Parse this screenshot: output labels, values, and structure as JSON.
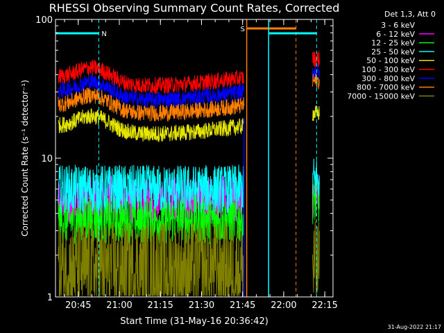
{
  "chart_data": {
    "type": "line",
    "title": "RHESSI Observing Summary Count Rates, Corrected",
    "xlabel": "Start Time (31-May-16 20:36:42)",
    "ylabel": "Corrected Count Rate (s⁻¹ detector⁻¹)",
    "yscale": "log",
    "ylim": [
      1,
      100
    ],
    "xlim": [
      "20:36:42",
      "22:18:00"
    ],
    "x_ticks": [
      "20:45",
      "21:00",
      "21:15",
      "21:30",
      "21:45",
      "22:00",
      "22:15"
    ],
    "y_ticks": [
      "1",
      "10",
      "100"
    ],
    "footer_date": "31-Aug-2022 21:17",
    "legend": {
      "header": "Det 1,3, Att 0",
      "placement": "right"
    },
    "series": [
      {
        "name": "3 - 6 keV",
        "color": "#000000",
        "baseline": [
          2.5,
          2.5,
          2.5
        ]
      },
      {
        "name": "6 - 12 keV",
        "color": "#ff00ff",
        "baseline": [
          5.0,
          5.0,
          5.5
        ]
      },
      {
        "name": "12 - 25 keV",
        "color": "#00ff00",
        "baseline": [
          3.6,
          3.6,
          5.0
        ]
      },
      {
        "name": "25 - 50 keV",
        "color": "#00ffff",
        "baseline": [
          6.0,
          6.0,
          7.0
        ]
      },
      {
        "name": "50 - 100 keV",
        "color": "#e6e600",
        "baseline": [
          17,
          17,
          21
        ]
      },
      {
        "name": "100 - 300 keV",
        "color": "#ff0000",
        "baseline": [
          38,
          35,
          52
        ]
      },
      {
        "name": "300 - 800 keV",
        "color": "#0000ff",
        "baseline": [
          30,
          26,
          42
        ]
      },
      {
        "name": "800 - 7000 keV",
        "color": "#ff7f00",
        "baseline": [
          24,
          21,
          36
        ]
      },
      {
        "name": "7000 - 15000 keV",
        "color": "#808000",
        "baseline": [
          1.6,
          1.6,
          1.6
        ]
      }
    ],
    "annotations": [
      {
        "label": "N",
        "type": "night",
        "color": "#00ffff",
        "start": "20:36:42",
        "end": "20:52:30"
      },
      {
        "label": "S",
        "type": "saa",
        "color": "#ff7f00",
        "start": "21:46:30",
        "end": "22:04:30"
      },
      {
        "label": "",
        "type": "night",
        "color": "#00ffff",
        "start": "21:54:30",
        "end": "22:12:00"
      }
    ],
    "data_gap": [
      "21:45:30",
      "22:10:30"
    ]
  }
}
